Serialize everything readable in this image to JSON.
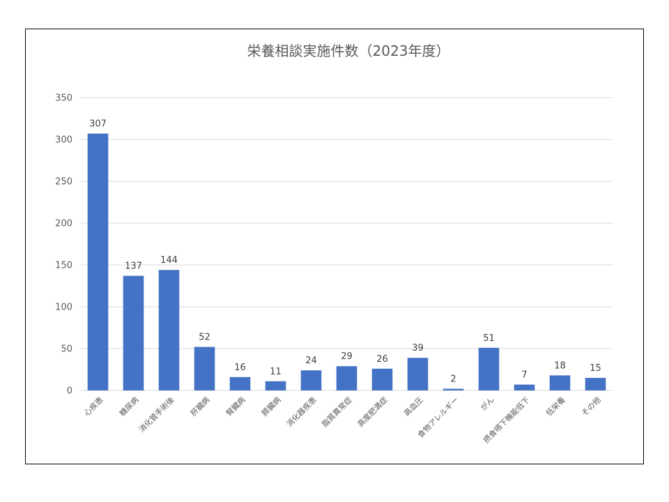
{
  "chart_data": {
    "type": "bar",
    "title": "栄養相談実施件数（2023年度）",
    "xlabel": "",
    "ylabel": "",
    "categories": [
      "心疾患",
      "糖尿病",
      "消化管手術後",
      "肝臓病",
      "腎臓病",
      "膵臓病",
      "消化器疾患",
      "脂質異常症",
      "高度肥満症",
      "高血圧",
      "食物アレルギー",
      "がん",
      "摂食嚥下機能低下",
      "低栄養",
      "その他"
    ],
    "series": [
      {
        "values": [
          307,
          137,
          144,
          52,
          16,
          11,
          24,
          29,
          26,
          39,
          2,
          51,
          7,
          18,
          15
        ]
      }
    ],
    "ylim": [
      0,
      350
    ],
    "yticks": [
      0,
      50,
      100,
      150,
      200,
      250,
      300,
      350
    ],
    "grid": true,
    "data_labels": true,
    "bar_color": "#4472c4"
  }
}
